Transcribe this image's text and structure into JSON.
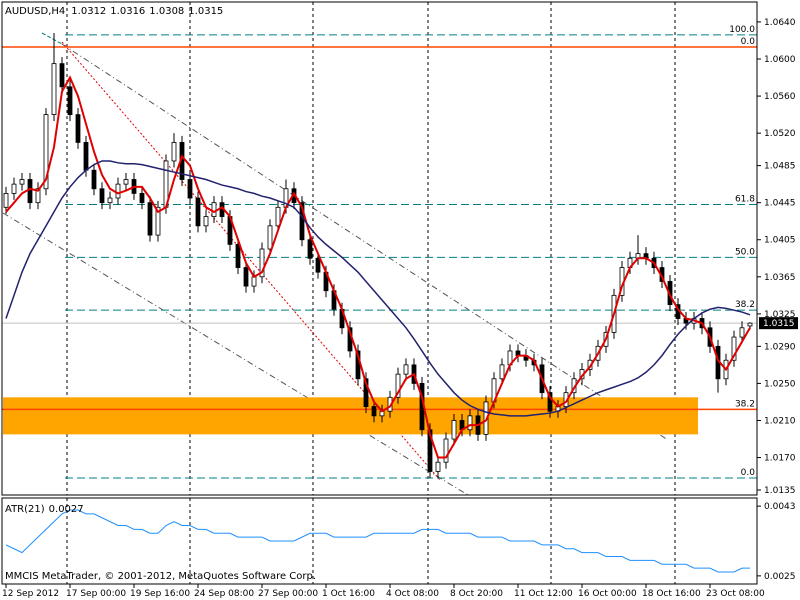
{
  "chart_data": {
    "type": "candlestick",
    "title": "AUDUSD,H4",
    "categories": [
      "12 Sep 2012",
      null,
      null,
      null,
      null,
      null,
      null,
      null,
      "17 Sep 00:00",
      null,
      null,
      null,
      null,
      null,
      null,
      null,
      "19 Sep 16:00",
      null,
      null,
      null,
      null,
      null,
      null,
      null,
      "24 Sep 08:00",
      null,
      null,
      null,
      null,
      null,
      null,
      null,
      "27 Sep 00:00",
      null,
      null,
      null,
      null,
      null,
      null,
      null,
      "1 Oct 16:00",
      null,
      null,
      null,
      null,
      null,
      null,
      null,
      "4 Oct 08:00",
      null,
      null,
      null,
      null,
      null,
      null,
      null,
      "8 Oct 20:00",
      null,
      null,
      null,
      null,
      null,
      null,
      null,
      "11 Oct 12:00",
      null,
      null,
      null,
      null,
      null,
      null,
      null,
      "16 Oct 00:00",
      null,
      null,
      null,
      null,
      null,
      null,
      null,
      "18 Oct 16:00",
      null,
      null,
      null,
      null,
      null,
      null,
      null,
      "23 Oct 08:00",
      null,
      null,
      null,
      null,
      null
    ],
    "open": [
      1.044,
      1.0455,
      1.0465,
      1.047,
      1.0445,
      1.046,
      1.054,
      1.0595,
      1.057,
      1.054,
      1.051,
      1.048,
      1.046,
      1.0445,
      1.045,
      1.0465,
      1.047,
      1.0455,
      1.0445,
      1.041,
      1.044,
      1.049,
      1.051,
      1.047,
      1.045,
      1.042,
      1.043,
      1.0445,
      1.043,
      1.04,
      1.0375,
      1.0355,
      1.0365,
      1.0395,
      1.042,
      1.044,
      1.046,
      1.0445,
      1.0405,
      1.0385,
      1.037,
      1.035,
      1.033,
      1.031,
      1.0285,
      1.0255,
      1.0225,
      1.0215,
      1.022,
      1.0235,
      1.026,
      1.027,
      1.025,
      1.02,
      1.0155,
      1.0165,
      1.019,
      1.021,
      1.02,
      1.0215,
      1.0195,
      1.023,
      1.0255,
      1.027,
      1.0285,
      1.028,
      1.0275,
      1.027,
      1.024,
      1.022,
      1.0225,
      1.024,
      1.0255,
      1.0265,
      1.0275,
      1.029,
      1.0305,
      1.0345,
      1.0375,
      1.0385,
      1.039,
      1.0385,
      1.0375,
      1.036,
      1.0335,
      1.032,
      1.0315,
      1.032,
      1.031,
      1.029,
      1.0255,
      1.0275,
      1.03,
      1.0312
    ],
    "high": [
      1.0462,
      1.0472,
      1.0477,
      1.0477,
      1.0467,
      1.0547,
      1.0628,
      1.0602,
      1.0577,
      1.0547,
      1.0517,
      1.0487,
      1.0467,
      1.0457,
      1.0472,
      1.0477,
      1.0477,
      1.0462,
      1.0452,
      1.0447,
      1.0497,
      1.052,
      1.0517,
      1.0477,
      1.0457,
      1.0437,
      1.0452,
      1.0452,
      1.0437,
      1.0407,
      1.0382,
      1.0372,
      1.0402,
      1.0427,
      1.0447,
      1.047,
      1.0467,
      1.0452,
      1.0412,
      1.0392,
      1.0377,
      1.0357,
      1.0337,
      1.0317,
      1.0292,
      1.0262,
      1.0232,
      1.0227,
      1.0242,
      1.0267,
      1.0277,
      1.0277,
      1.0257,
      1.0207,
      1.0172,
      1.0197,
      1.0217,
      1.0217,
      1.0222,
      1.0222,
      1.0237,
      1.0262,
      1.0277,
      1.0292,
      1.0292,
      1.0287,
      1.0282,
      1.0277,
      1.0247,
      1.0232,
      1.0247,
      1.0262,
      1.0272,
      1.0282,
      1.0297,
      1.0312,
      1.0352,
      1.0382,
      1.0392,
      1.041,
      1.0397,
      1.0392,
      1.0382,
      1.0367,
      1.0342,
      1.0327,
      1.0327,
      1.0327,
      1.0317,
      1.0297,
      1.0282,
      1.0307,
      1.0317,
      1.0316
    ],
    "low": [
      1.0433,
      1.0448,
      1.0458,
      1.0438,
      1.0438,
      1.0453,
      1.0533,
      1.0563,
      1.0533,
      1.0503,
      1.0473,
      1.0453,
      1.0438,
      1.0438,
      1.0443,
      1.0458,
      1.0448,
      1.0438,
      1.0403,
      1.0403,
      1.0433,
      1.0483,
      1.0463,
      1.0443,
      1.0413,
      1.0413,
      1.0423,
      1.0423,
      1.0393,
      1.0368,
      1.0348,
      1.0348,
      1.0358,
      1.0388,
      1.0413,
      1.0433,
      1.0438,
      1.0398,
      1.0378,
      1.0363,
      1.0343,
      1.0323,
      1.0303,
      1.0278,
      1.0248,
      1.0218,
      1.0208,
      1.0208,
      1.0213,
      1.0228,
      1.0253,
      1.0243,
      1.0193,
      1.0148,
      1.0148,
      1.0158,
      1.0183,
      1.0193,
      1.0193,
      1.0188,
      1.0188,
      1.0223,
      1.0248,
      1.0263,
      1.0273,
      1.0268,
      1.0263,
      1.0233,
      1.0213,
      1.0213,
      1.0218,
      1.0233,
      1.0248,
      1.0258,
      1.0268,
      1.0283,
      1.0298,
      1.0338,
      1.0368,
      1.0378,
      1.0378,
      1.0368,
      1.0353,
      1.0328,
      1.0313,
      1.0308,
      1.0308,
      1.0303,
      1.0283,
      1.024,
      1.0248,
      1.0268,
      1.0293,
      1.0308
    ],
    "close": [
      1.0455,
      1.0465,
      1.047,
      1.0445,
      1.046,
      1.054,
      1.0595,
      1.057,
      1.054,
      1.051,
      1.048,
      1.046,
      1.0445,
      1.045,
      1.0465,
      1.047,
      1.0455,
      1.0445,
      1.041,
      1.044,
      1.049,
      1.051,
      1.047,
      1.045,
      1.042,
      1.043,
      1.0445,
      1.043,
      1.04,
      1.0375,
      1.0355,
      1.0365,
      1.0395,
      1.042,
      1.044,
      1.046,
      1.0445,
      1.0405,
      1.0385,
      1.037,
      1.035,
      1.033,
      1.031,
      1.0285,
      1.0255,
      1.0225,
      1.0215,
      1.022,
      1.0235,
      1.026,
      1.027,
      1.025,
      1.02,
      1.0155,
      1.0165,
      1.019,
      1.021,
      1.02,
      1.0215,
      1.0195,
      1.023,
      1.0255,
      1.027,
      1.0285,
      1.028,
      1.0275,
      1.027,
      1.024,
      1.022,
      1.0225,
      1.024,
      1.0255,
      1.0265,
      1.0275,
      1.029,
      1.0305,
      1.0345,
      1.0375,
      1.0385,
      1.039,
      1.0385,
      1.0375,
      1.036,
      1.0335,
      1.032,
      1.0315,
      1.032,
      1.031,
      1.029,
      1.0255,
      1.0275,
      1.03,
      1.031,
      1.0315
    ],
    "candle_color": "#000000",
    "series": [
      {
        "color": "#e00000",
        "values": [
          1.0435,
          1.0445,
          1.0455,
          1.046,
          1.0458,
          1.047,
          1.0505,
          1.0565,
          1.058,
          1.056,
          1.053,
          1.05,
          1.0475,
          1.046,
          1.0455,
          1.0458,
          1.0462,
          1.0462,
          1.045,
          1.0435,
          1.044,
          1.047,
          1.0495,
          1.0485,
          1.046,
          1.044,
          1.0435,
          1.044,
          1.043,
          1.0405,
          1.038,
          1.0365,
          1.037,
          1.039,
          1.0415,
          1.044,
          1.0455,
          1.044,
          1.041,
          1.039,
          1.037,
          1.035,
          1.033,
          1.0305,
          1.028,
          1.025,
          1.023,
          1.022,
          1.0225,
          1.024,
          1.0255,
          1.026,
          1.0235,
          1.0195,
          1.017,
          1.017,
          1.0185,
          1.02,
          1.0205,
          1.0205,
          1.021,
          1.023,
          1.025,
          1.027,
          1.028,
          1.028,
          1.0275,
          1.0255,
          1.0235,
          1.0225,
          1.023,
          1.0245,
          1.0258,
          1.0268,
          1.0282,
          1.0298,
          1.0325,
          1.0355,
          1.0375,
          1.0385,
          1.0385,
          1.038,
          1.0365,
          1.0345,
          1.033,
          1.032,
          1.0318,
          1.0315,
          1.03,
          1.0275,
          1.0265,
          1.028,
          1.0295,
          1.031
        ]
      },
      {
        "color": "#22226e",
        "values": [
          1.032,
          1.0345,
          1.037,
          1.039,
          1.0405,
          1.042,
          1.0435,
          1.045,
          1.0462,
          1.0472,
          1.048,
          1.0486,
          1.049,
          1.049,
          1.0488,
          1.0487,
          1.0487,
          1.0486,
          1.0484,
          1.0482,
          1.048,
          1.0478,
          1.0476,
          1.0474,
          1.0472,
          1.047,
          1.0467,
          1.0464,
          1.0462,
          1.046,
          1.0457,
          1.0455,
          1.0452,
          1.045,
          1.0447,
          1.0444,
          1.044,
          1.043,
          1.0418,
          1.0408,
          1.04,
          1.0393,
          1.0386,
          1.0378,
          1.037,
          1.036,
          1.035,
          1.034,
          1.033,
          1.032,
          1.031,
          1.0298,
          1.0285,
          1.0272,
          1.026,
          1.025,
          1.024,
          1.0232,
          1.0226,
          1.0222,
          1.0219,
          1.0217,
          1.0216,
          1.0215,
          1.0215,
          1.0215,
          1.0216,
          1.0217,
          1.0218,
          1.022,
          1.0224,
          1.0228,
          1.0232,
          1.0236,
          1.024,
          1.0243,
          1.0246,
          1.0249,
          1.0252,
          1.0256,
          1.0262,
          1.027,
          1.028,
          1.0292,
          1.0303,
          1.0312,
          1.032,
          1.0326,
          1.033,
          1.0332,
          1.0331,
          1.0329,
          1.0327,
          1.0324
        ]
      }
    ],
    "ylim": [
      1.01296,
      1.06615
    ],
    "yticks": [
      {
        "value": 1.064,
        "label": "1.0640"
      },
      {
        "value": 1.06,
        "label": "1.0600"
      },
      {
        "value": 1.056,
        "label": "1.0560"
      },
      {
        "value": 1.052,
        "label": "1.0520"
      },
      1.0485,
      1.0445,
      1.0405,
      1.0365,
      1.0325,
      {
        "value": 1.029,
        "label": "1.0290"
      },
      {
        "value": 1.025,
        "label": "1.0250"
      },
      {
        "value": 1.021,
        "label": "1.0210"
      },
      {
        "value": 1.017,
        "label": "1.0170"
      },
      1.0135
    ],
    "fib_levels": [
      {
        "label": "100.0",
        "price": 1.0626,
        "color": "#008080",
        "style": "dashed"
      },
      {
        "label": "0.0",
        "price": 1.0613,
        "color": "#ff4500",
        "style": "solid"
      },
      {
        "label": "61.8",
        "price": 1.0443,
        "color": "#008080",
        "style": "dashed"
      },
      {
        "label": "50.0",
        "price": 1.0386,
        "color": "#008080",
        "style": "dashed"
      },
      {
        "label": "38.2",
        "price": 1.0329,
        "color": "#008080",
        "style": "dashed"
      },
      {
        "label": "38.2",
        "price": 1.0222,
        "color": "#ff4500",
        "style": "solid"
      },
      {
        "label": "0.0",
        "price": 1.0148,
        "color": "#008080",
        "style": "dashed"
      }
    ],
    "zone": {
      "top": 1.0235,
      "bottom": 1.0195,
      "color": "#ffa500"
    },
    "watermark": "MMCIS MetaTrader, © 2001-2012, MetaQuotes Software Corp.",
    "indicator": {
      "type": "line",
      "title": "ATR(21)",
      "color": "#1e90ff",
      "values": [
        0.0033,
        0.0032,
        0.0031,
        0.0033,
        0.0035,
        0.0037,
        0.0039,
        0.0041,
        0.0042,
        0.0042,
        0.0041,
        0.0041,
        0.004,
        0.0039,
        0.0038,
        0.0038,
        0.0037,
        0.0037,
        0.0036,
        0.0036,
        0.0038,
        0.0039,
        0.0038,
        0.0038,
        0.0037,
        0.0037,
        0.0036,
        0.0036,
        0.0036,
        0.0035,
        0.0035,
        0.0035,
        0.0035,
        0.0034,
        0.0034,
        0.0034,
        0.0034,
        0.0035,
        0.0036,
        0.0036,
        0.0036,
        0.0035,
        0.0035,
        0.0035,
        0.0035,
        0.0035,
        0.0036,
        0.0036,
        0.0036,
        0.0036,
        0.0036,
        0.0036,
        0.0037,
        0.0037,
        0.0037,
        0.0036,
        0.0036,
        0.0036,
        0.0036,
        0.0035,
        0.0035,
        0.0035,
        0.0035,
        0.0034,
        0.0034,
        0.0034,
        0.0034,
        0.0033,
        0.0033,
        0.0033,
        0.0032,
        0.0032,
        0.0031,
        0.0031,
        0.0031,
        0.003,
        0.003,
        0.003,
        0.0029,
        0.0029,
        0.0029,
        0.0029,
        0.0028,
        0.0028,
        0.0028,
        0.0028,
        0.0027,
        0.0027,
        0.0027,
        0.0026,
        0.0026,
        0.0026,
        0.0027,
        0.0027
      ],
      "ylim": [
        0.00229,
        0.00451
      ],
      "yticks": [
        0.0043,
        0.0025
      ]
    }
  }
}
